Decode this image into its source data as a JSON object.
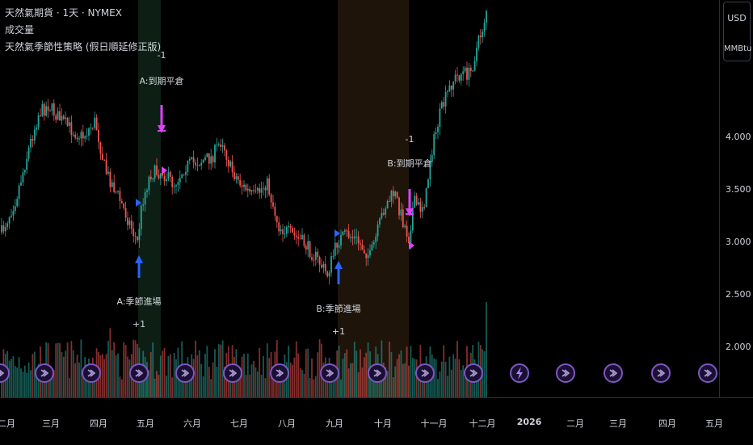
{
  "legend": {
    "title": "天然氣期貨 · 1天 · NYMEX",
    "volume": "成交量",
    "strategy": "天然氣季節性策略 (假日順延修正版)"
  },
  "price_scale": {
    "currency": "USD",
    "unit": "MMBtu",
    "labels": [
      "4.000",
      "3.500",
      "3.000",
      "2.500",
      "2.000"
    ]
  },
  "time_axis": {
    "labels": [
      "二月",
      "三月",
      "四月",
      "五月",
      "六月",
      "七月",
      "八月",
      "九月",
      "十月",
      "十一月",
      "十二月",
      "2026",
      "二月",
      "三月",
      "四月",
      "五月"
    ]
  },
  "signals": [
    {
      "name": "A:季節進場",
      "qty": "+1"
    },
    {
      "name": "A:到期平倉",
      "qty": "-1"
    },
    {
      "name": "B:季節進場",
      "qty": "+1"
    },
    {
      "name": "B:到期平倉",
      "qty": "-1"
    }
  ],
  "colors": {
    "up": "#26a69a",
    "down": "#ef5350",
    "entry_arrow": "#2962ff",
    "exit_arrow": "#e040fb",
    "zone_a": "#0d1f14",
    "zone_b": "#1e140a",
    "event_icon": "#7e57c2"
  },
  "icons": {
    "event_marker": "dividend-arrow-icon",
    "flash_marker": "lightning-icon"
  }
}
